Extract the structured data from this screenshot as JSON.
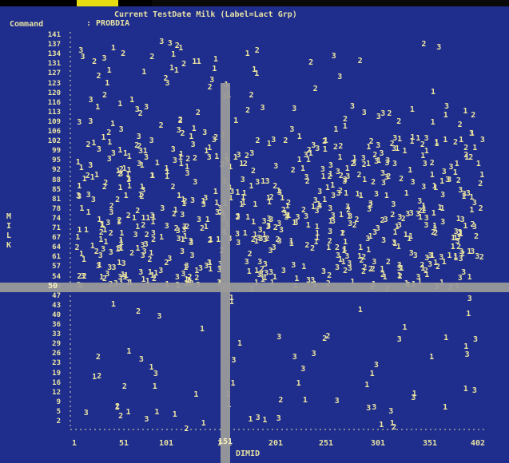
{
  "screen": {
    "title": "Current TestDate Milk (Label=Lact Grp)",
    "command_label": "Command",
    "command_value": ": PROBDIA"
  },
  "chart_data": {
    "type": "scatter",
    "x_ticks": [
      "1",
      "51",
      "101",
      "151",
      "201",
      "251",
      "301",
      "351",
      "402"
    ],
    "xlabel": "DIMID",
    "ylabel": "Milk",
    "y_ticks": [
      "141",
      "137",
      "134",
      "131",
      "127",
      "123",
      "120",
      "116",
      "113",
      "109",
      "106",
      "102",
      "99",
      "95",
      "92",
      "88",
      "85",
      "81",
      "78",
      "74",
      "71",
      "67",
      "64",
      "61",
      "57",
      "54",
      "50",
      "47",
      "43",
      "40",
      "36",
      "33",
      "29",
      "26",
      "23",
      "19",
      "16",
      "12",
      "9",
      "5",
      "2"
    ],
    "crosshair_y": "50",
    "crosshair_x": "151",
    "marker_symbols": [
      "1",
      "2",
      "3"
    ],
    "xlim": [
      1,
      402
    ],
    "ylim": [
      2,
      141
    ]
  },
  "colors": {
    "background": "#1f2e8c",
    "text": "#e6e0a4",
    "crosshair": "#9a9a9a",
    "accent": "#e7dd10"
  }
}
